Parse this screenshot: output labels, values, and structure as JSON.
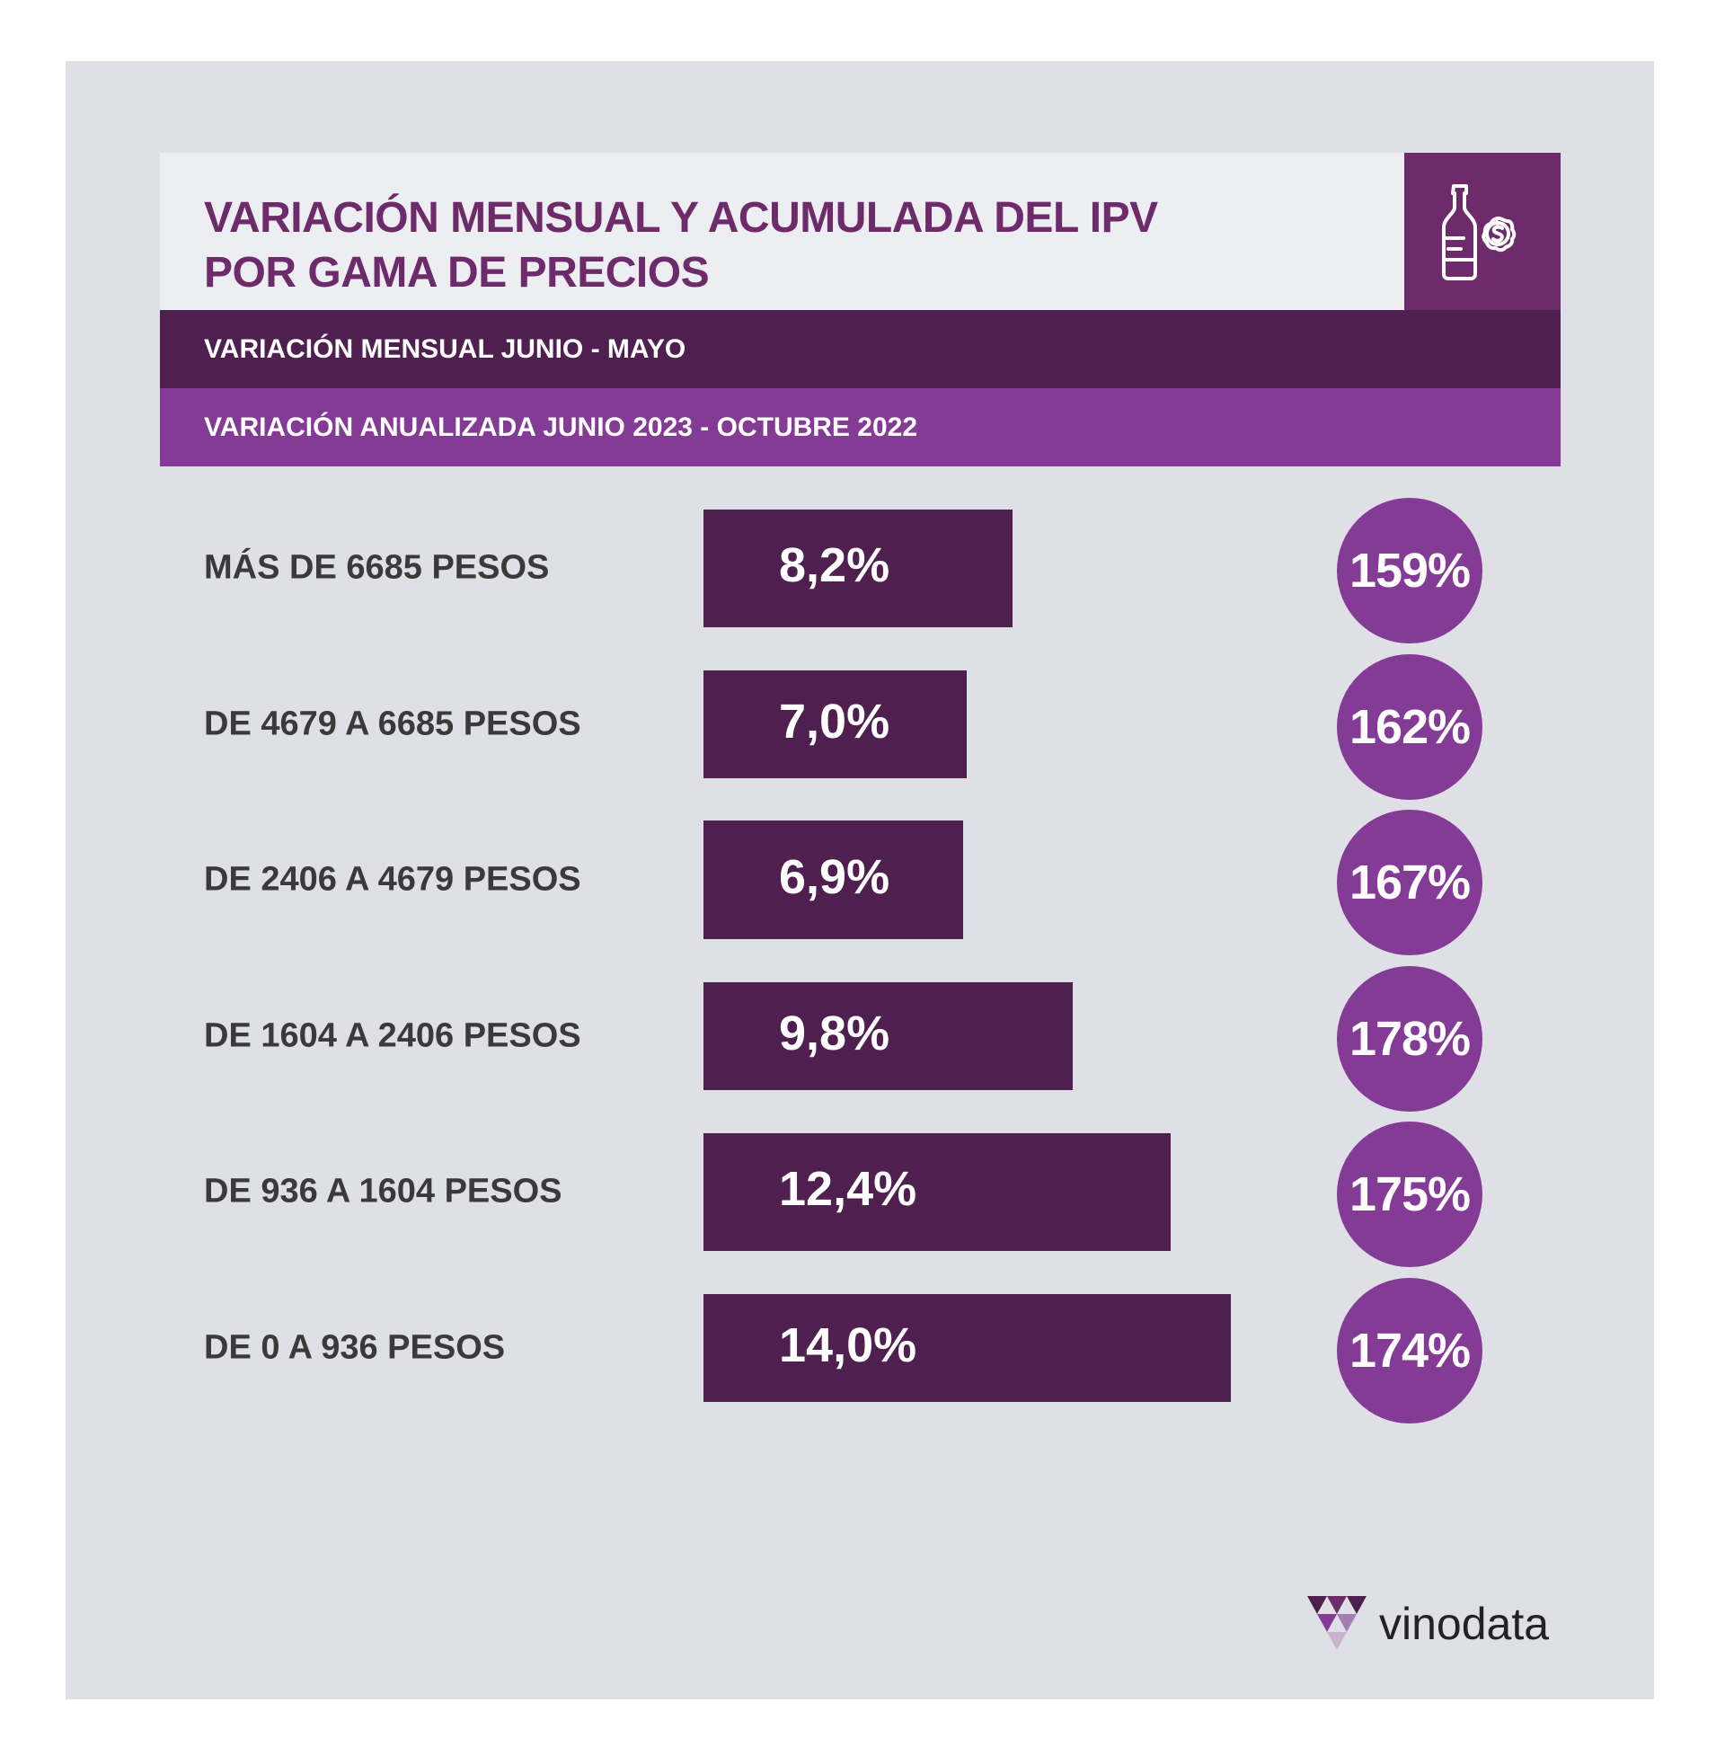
{
  "header": {
    "title_line1": "VARIACIÓN MENSUAL Y ACUMULADA DEL IPV",
    "title_line2": "POR GAMA DE PRECIOS",
    "icon": "wine-bottle-dollar-icon"
  },
  "legend": {
    "monthly": "VARIACIÓN MENSUAL JUNIO - MAYO",
    "annual": "VARIACIÓN ANUALIZADA JUNIO 2023 - OCTUBRE 2022"
  },
  "colors": {
    "title": "#6d2b6b",
    "monthly": "#4f1f4f",
    "annual": "#843b96",
    "background": "#dfe0e6"
  },
  "chart_data": {
    "type": "bar",
    "orientation": "horizontal",
    "categories": [
      "MÁS DE 6685 PESOS",
      "DE 4679 A 6685 PESOS",
      "DE 2406 A 4679 PESOS",
      "DE 1604 A 2406 PESOS",
      "DE 936 A 1604 PESOS",
      "DE 0 A 936 PESOS"
    ],
    "series": [
      {
        "name": "VARIACIÓN MENSUAL JUNIO - MAYO",
        "values": [
          8.2,
          7.0,
          6.9,
          9.8,
          12.4,
          14.0
        ],
        "labels": [
          "8,2%",
          "7,0%",
          "6,9%",
          "9,8%",
          "12,4%",
          "14,0%"
        ],
        "color": "#4f1f4f"
      },
      {
        "name": "VARIACIÓN ANUALIZADA JUNIO 2023 - OCTUBRE 2022",
        "values": [
          159,
          162,
          167,
          178,
          175,
          174
        ],
        "labels": [
          "159%",
          "162%",
          "167%",
          "178%",
          "175%",
          "174%"
        ],
        "color": "#843b96"
      }
    ],
    "grid": false
  },
  "brand": {
    "name": "vinodata",
    "icon": "vinodata-logo-icon"
  }
}
